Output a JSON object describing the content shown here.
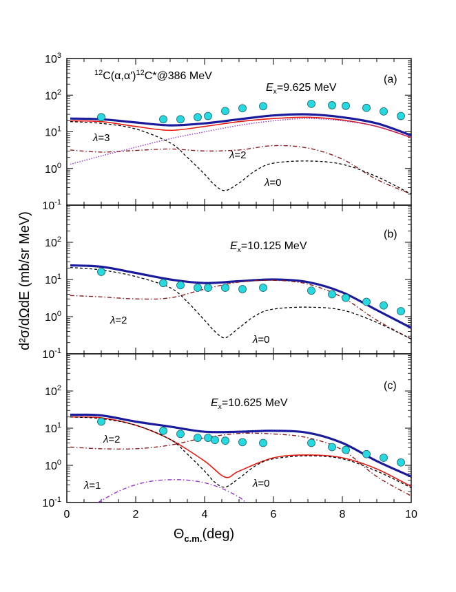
{
  "chart_data": {
    "type": "line",
    "xlabel": "Θ",
    "xlabel_sub": "c.m.",
    "xlabel_unit": "(deg)",
    "ylabel": "d²σ/dΩdE (mb/sr MeV)",
    "xlim": [
      0,
      10
    ],
    "ylim": [
      0.1,
      1000
    ],
    "yscale": "log",
    "x_ticks": [
      "0",
      "2",
      "4",
      "6",
      "8",
      "10"
    ],
    "y_tick_exponents": [
      "3",
      "2",
      "1",
      "0",
      "-1"
    ],
    "colors": {
      "total": "#1a1a9c",
      "lambda0": "#000000",
      "lambda1": "#9933cc",
      "lambda2": "#8b1a1a",
      "lambda3": "#9933cc",
      "red_fit": "#e8190f",
      "data": "#26d9e0"
    },
    "panels": [
      {
        "tag": "(a)",
        "reaction": "12C(α,α')12C*@386 MeV",
        "energy": "Ex=9.625 MeV",
        "curve_labels": [
          "λ=3",
          "λ=2",
          "λ=0"
        ],
        "data_points": {
          "x": [
            1.0,
            2.8,
            3.3,
            3.8,
            4.1,
            4.6,
            5.1,
            5.7,
            7.1,
            7.7,
            8.1,
            8.7,
            9.2,
            9.7
          ],
          "y": [
            25,
            22,
            22,
            25,
            27,
            37,
            44,
            50,
            58,
            53,
            51,
            45,
            36,
            27
          ]
        },
        "series": [
          {
            "x": [
              0.1,
              1,
              2,
              3,
              4,
              5,
              6,
              7,
              8,
              9,
              10
            ],
            "y": [
              23,
              22,
              18,
              15,
              17,
              22,
              28,
              30,
              25,
              17,
              8
            ],
            "style": "total"
          },
          {
            "x": [
              0.1,
              1,
              2,
              3,
              4,
              5,
              6,
              7,
              8,
              9,
              10
            ],
            "y": [
              20,
              19,
              14,
              11,
              14,
              19,
              23,
              25,
              21,
              14,
              7
            ],
            "style": "red_fit"
          },
          {
            "x": [
              0.1,
              1,
              2,
              3,
              4,
              5,
              6,
              7,
              8,
              9,
              10
            ],
            "y": [
              1.3,
              2.2,
              3.8,
              6.5,
              10,
              15,
              20,
              23,
              20,
              14,
              7
            ],
            "style": "lambda3"
          },
          {
            "x": [
              0.1,
              1,
              2,
              3,
              4,
              5,
              6,
              7,
              8,
              9,
              10
            ],
            "y": [
              3.2,
              2.8,
              3.1,
              3.4,
              3.0,
              3.2,
              4.2,
              3.6,
              1.8,
              0.5,
              0.2
            ],
            "style": "lambda2"
          },
          {
            "x": [
              0.1,
              1,
              2,
              3,
              3.5,
              4,
              4.3,
              4.6,
              5,
              5.5,
              6,
              7,
              8,
              9,
              10
            ],
            "y": [
              19,
              17,
              12,
              5,
              2.0,
              0.7,
              0.35,
              0.25,
              0.4,
              0.9,
              1.4,
              1.6,
              1.3,
              0.6,
              0.2
            ],
            "style": "lambda0"
          }
        ]
      },
      {
        "tag": "(b)",
        "reaction": "",
        "energy": "Ex=10.125 MeV",
        "curve_labels": [
          "λ=2",
          "λ=0"
        ],
        "data_points": {
          "x": [
            1.0,
            2.8,
            3.3,
            3.8,
            4.1,
            4.6,
            5.1,
            5.7,
            7.1,
            7.7,
            8.1,
            8.7,
            9.2,
            9.7
          ],
          "y": [
            16,
            8,
            7,
            6,
            6,
            6,
            5.5,
            6,
            5,
            4,
            3.2,
            2.5,
            2.0,
            1.4
          ]
        },
        "series": [
          {
            "x": [
              0.1,
              1,
              2,
              3,
              4,
              5,
              6,
              7,
              8,
              9,
              10
            ],
            "y": [
              24,
              22,
              15,
              10,
              8,
              9,
              10,
              8.5,
              4.5,
              1.5,
              0.5
            ],
            "style": "total"
          },
          {
            "x": [
              0.1,
              1,
              2,
              3,
              4,
              5,
              6,
              7,
              8,
              9,
              10
            ],
            "y": [
              3.7,
              3.4,
              3.0,
              3.2,
              5.5,
              8.5,
              9.5,
              7.5,
              3.3,
              0.8,
              0.25
            ],
            "style": "lambda2"
          },
          {
            "x": [
              0.1,
              1,
              2,
              3,
              3.5,
              4,
              4.3,
              4.6,
              5,
              5.5,
              6,
              7,
              8,
              9,
              10
            ],
            "y": [
              21,
              18,
              12,
              6,
              2.5,
              0.8,
              0.4,
              0.27,
              0.5,
              1.1,
              1.6,
              1.8,
              1.5,
              0.7,
              0.25
            ],
            "style": "lambda0"
          }
        ]
      },
      {
        "tag": "(c)",
        "reaction": "",
        "energy": "Ex=10.625 MeV",
        "curve_labels": [
          "λ=2",
          "λ=1",
          "λ=0"
        ],
        "data_points": {
          "x": [
            1.0,
            2.8,
            3.3,
            3.8,
            4.1,
            4.3,
            4.6,
            5.1,
            5.7,
            7.1,
            7.7,
            8.1,
            8.7,
            9.2,
            9.7
          ],
          "y": [
            15,
            8.5,
            7,
            5.5,
            5.5,
            4.8,
            4.6,
            4.2,
            4.0,
            4.0,
            3.1,
            2.6,
            2.0,
            1.6,
            1.2
          ]
        },
        "series": [
          {
            "x": [
              0.1,
              1,
              2,
              3,
              4,
              5,
              6,
              7,
              8,
              9,
              10
            ],
            "y": [
              23,
              22,
              15,
              11,
              8,
              8,
              8.5,
              7.5,
              4.0,
              1.3,
              0.5
            ],
            "style": "total"
          },
          {
            "x": [
              0.1,
              1,
              2,
              3,
              4,
              4.6,
              5,
              6,
              7,
              8,
              9,
              10
            ],
            "y": [
              20,
              19,
              12,
              5,
              1.3,
              0.48,
              0.7,
              1.6,
              1.9,
              1.6,
              0.8,
              0.27
            ],
            "style": "red_fit"
          },
          {
            "x": [
              0.1,
              1,
              2,
              3,
              4,
              5,
              6,
              7,
              8,
              9,
              10
            ],
            "y": [
              3.1,
              2.8,
              2.8,
              3.5,
              5.5,
              7.2,
              7.0,
              5.5,
              2.6,
              0.5,
              0.15
            ],
            "style": "lambda2"
          },
          {
            "x": [
              0.1,
              1,
              2,
              3,
              3.5,
              4,
              4.3,
              4.6,
              5,
              5.5,
              6,
              7,
              8,
              9,
              10
            ],
            "y": [
              20,
              18,
              12,
              5,
              2.0,
              0.7,
              0.35,
              0.26,
              0.45,
              1.0,
              1.5,
              1.8,
              1.5,
              0.7,
              0.25
            ],
            "style": "lambda0"
          },
          {
            "x": [
              0.9,
              1.5,
              2,
              2.5,
              3,
              3.5,
              4,
              4.5,
              5,
              5.2
            ],
            "y": [
              0.1,
              0.2,
              0.3,
              0.38,
              0.41,
              0.4,
              0.34,
              0.24,
              0.14,
              0.1
            ],
            "style": "lambda1"
          }
        ]
      }
    ]
  }
}
